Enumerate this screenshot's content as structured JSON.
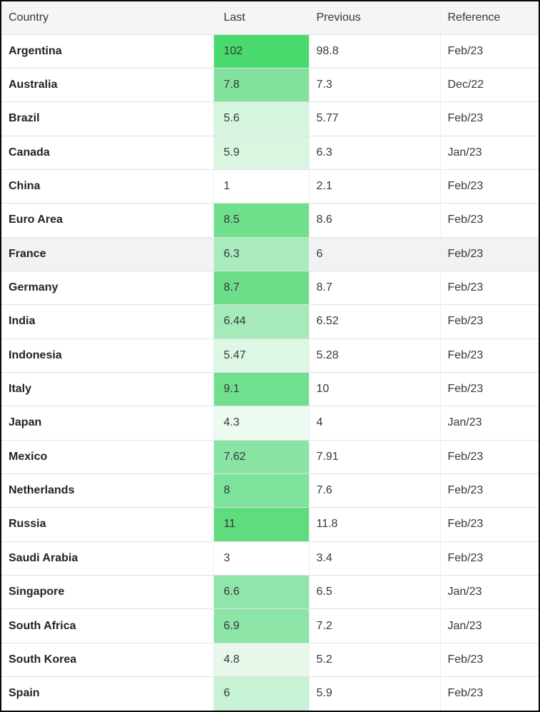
{
  "table": {
    "columns": [
      {
        "label": "Country"
      },
      {
        "label": "Last"
      },
      {
        "label": "Previous"
      },
      {
        "label": "Reference"
      }
    ],
    "rows": [
      {
        "country": "Argentina",
        "last": "102",
        "previous": "98.8",
        "reference": "Feb/23",
        "last_bg": "#4ad96d",
        "row_bg": "#ffffff"
      },
      {
        "country": "Australia",
        "last": "7.8",
        "previous": "7.3",
        "reference": "Dec/22",
        "last_bg": "#82e29d",
        "row_bg": "#ffffff"
      },
      {
        "country": "Brazil",
        "last": "5.6",
        "previous": "5.77",
        "reference": "Feb/23",
        "last_bg": "#d6f5de",
        "row_bg": "#ffffff"
      },
      {
        "country": "Canada",
        "last": "5.9",
        "previous": "6.3",
        "reference": "Jan/23",
        "last_bg": "#d9f6e0",
        "row_bg": "#ffffff"
      },
      {
        "country": "China",
        "last": "1",
        "previous": "2.1",
        "reference": "Feb/23",
        "last_bg": "#ffffff",
        "row_bg": "#ffffff"
      },
      {
        "country": "Euro Area",
        "last": "8.5",
        "previous": "8.6",
        "reference": "Feb/23",
        "last_bg": "#6fdf8c",
        "row_bg": "#ffffff"
      },
      {
        "country": "France",
        "last": "6.3",
        "previous": "6",
        "reference": "Feb/23",
        "last_bg": "#aaebbd",
        "row_bg": "#f2f2f3"
      },
      {
        "country": "Germany",
        "last": "8.7",
        "previous": "8.7",
        "reference": "Feb/23",
        "last_bg": "#6cde8a",
        "row_bg": "#ffffff"
      },
      {
        "country": "India",
        "last": "6.44",
        "previous": "6.52",
        "reference": "Feb/23",
        "last_bg": "#a6eaba",
        "row_bg": "#ffffff"
      },
      {
        "country": "Indonesia",
        "last": "5.47",
        "previous": "5.28",
        "reference": "Feb/23",
        "last_bg": "#def7e4",
        "row_bg": "#ffffff"
      },
      {
        "country": "Italy",
        "last": "9.1",
        "previous": "10",
        "reference": "Feb/23",
        "last_bg": "#71e08e",
        "row_bg": "#ffffff"
      },
      {
        "country": "Japan",
        "last": "4.3",
        "previous": "4",
        "reference": "Jan/23",
        "last_bg": "#edfaf0",
        "row_bg": "#ffffff"
      },
      {
        "country": "Mexico",
        "last": "7.62",
        "previous": "7.91",
        "reference": "Feb/23",
        "last_bg": "#8ae4a4",
        "row_bg": "#ffffff"
      },
      {
        "country": "Netherlands",
        "last": "8",
        "previous": "7.6",
        "reference": "Feb/23",
        "last_bg": "#7de29a",
        "row_bg": "#ffffff"
      },
      {
        "country": "Russia",
        "last": "11",
        "previous": "11.8",
        "reference": "Feb/23",
        "last_bg": "#60dc7f",
        "row_bg": "#ffffff"
      },
      {
        "country": "Saudi Arabia",
        "last": "3",
        "previous": "3.4",
        "reference": "Feb/23",
        "last_bg": "#ffffff",
        "row_bg": "#ffffff"
      },
      {
        "country": "Singapore",
        "last": "6.6",
        "previous": "6.5",
        "reference": "Jan/23",
        "last_bg": "#90e5aa",
        "row_bg": "#ffffff"
      },
      {
        "country": "South Africa",
        "last": "6.9",
        "previous": "7.2",
        "reference": "Jan/23",
        "last_bg": "#8ce4a6",
        "row_bg": "#ffffff"
      },
      {
        "country": "South Korea",
        "last": "4.8",
        "previous": "5.2",
        "reference": "Feb/23",
        "last_bg": "#e5f8ea",
        "row_bg": "#ffffff"
      },
      {
        "country": "Spain",
        "last": "6",
        "previous": "5.9",
        "reference": "Feb/23",
        "last_bg": "#c7f2d3",
        "row_bg": "#ffffff"
      }
    ]
  },
  "colors": {
    "frame_border": "#0a0a0a",
    "header_bg": "#f5f5f6",
    "row_divider": "#dee1e4",
    "highlight_row_bg": "#f2f2f3",
    "heat_green_max": "#4ad96d"
  }
}
